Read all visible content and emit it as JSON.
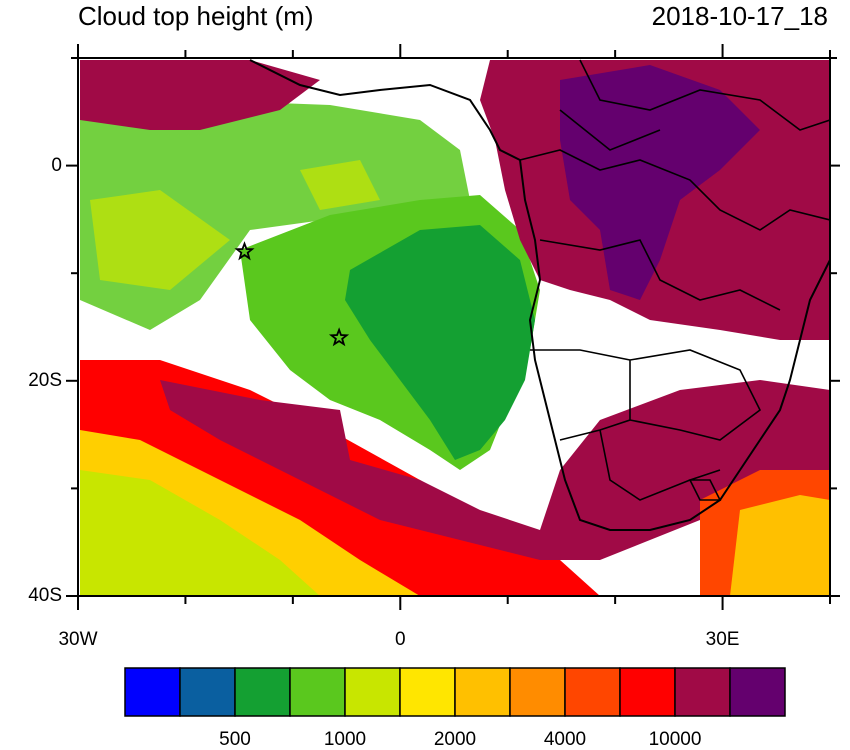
{
  "header": {
    "title": "Cloud top height (m)",
    "date": "2018-10-17_18"
  },
  "axes": {
    "lon_range": [
      -30,
      40
    ],
    "lat_range": [
      -40,
      10
    ],
    "y_ticks": [
      {
        "lat": 0,
        "label": "0"
      },
      {
        "lat": -20,
        "label": "20S"
      },
      {
        "lat": -40,
        "label": "40S"
      }
    ],
    "x_ticks": [
      {
        "lon": -30,
        "label": "30W"
      },
      {
        "lon": 0,
        "label": "0"
      },
      {
        "lon": 30,
        "label": "30E"
      }
    ],
    "minor_lon_ticks": [
      -20,
      -10,
      10,
      20,
      40
    ],
    "minor_lat_ticks": [
      10,
      -10,
      -30
    ]
  },
  "markers": [
    {
      "name": "star-marker-1",
      "lon": -14.5,
      "lat": -8
    },
    {
      "name": "star-marker-2",
      "lon": -5.7,
      "lat": -16
    }
  ],
  "colorbar": {
    "colors": [
      "#0000ff",
      "#0a5fa0",
      "#14a032",
      "#5ac81e",
      "#c8e600",
      "#ffe600",
      "#ffc000",
      "#ff8c00",
      "#ff4600",
      "#ff0000",
      "#a00a46",
      "#64006e"
    ],
    "labels": [
      {
        "after_index": 1,
        "text": "500"
      },
      {
        "after_index": 3,
        "text": "1000"
      },
      {
        "after_index": 5,
        "text": "2000"
      },
      {
        "after_index": 7,
        "text": "4000"
      },
      {
        "after_index": 9,
        "text": "10000"
      }
    ]
  },
  "legend_colors": {
    "ocean_green_dark": "#14a032",
    "ocean_green_light": "#5ac81e",
    "high_cloud": "#a00a46",
    "very_high_cloud": "#64006e",
    "mid_red": "#ff0000",
    "low_yellow": "#ffe600"
  }
}
